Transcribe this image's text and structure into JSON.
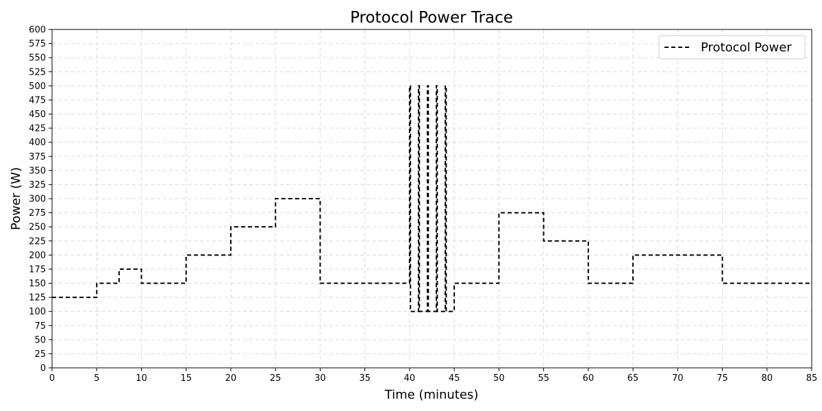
{
  "chart_data": {
    "type": "line",
    "title": "Protocol Power Trace",
    "xlabel": "Time (minutes)",
    "ylabel": "Power (W)",
    "xlim": [
      0,
      85
    ],
    "ylim": [
      0,
      600
    ],
    "xticks": [
      0,
      5,
      10,
      15,
      20,
      25,
      30,
      35,
      40,
      45,
      50,
      55,
      60,
      65,
      70,
      75,
      80,
      85
    ],
    "yticks": [
      0,
      25,
      50,
      75,
      100,
      125,
      150,
      175,
      200,
      225,
      250,
      275,
      300,
      325,
      350,
      375,
      400,
      425,
      450,
      475,
      500,
      525,
      550,
      575,
      600
    ],
    "grid": true,
    "legend": {
      "position": "top-right"
    },
    "series": [
      {
        "name": "Protocol Power",
        "color": "#000000",
        "line_style": "dashed",
        "step": true,
        "x": [
          0,
          5,
          7.5,
          10,
          15,
          20,
          25,
          30,
          40,
          40.1,
          41,
          41.1,
          42,
          42.1,
          43,
          43.1,
          44,
          44.1,
          45,
          50,
          55,
          60,
          65,
          75,
          85
        ],
        "y": [
          125,
          150,
          175,
          150,
          200,
          250,
          300,
          150,
          500,
          100,
          500,
          100,
          500,
          100,
          500,
          100,
          500,
          100,
          150,
          275,
          225,
          150,
          200,
          150,
          150
        ]
      }
    ]
  }
}
